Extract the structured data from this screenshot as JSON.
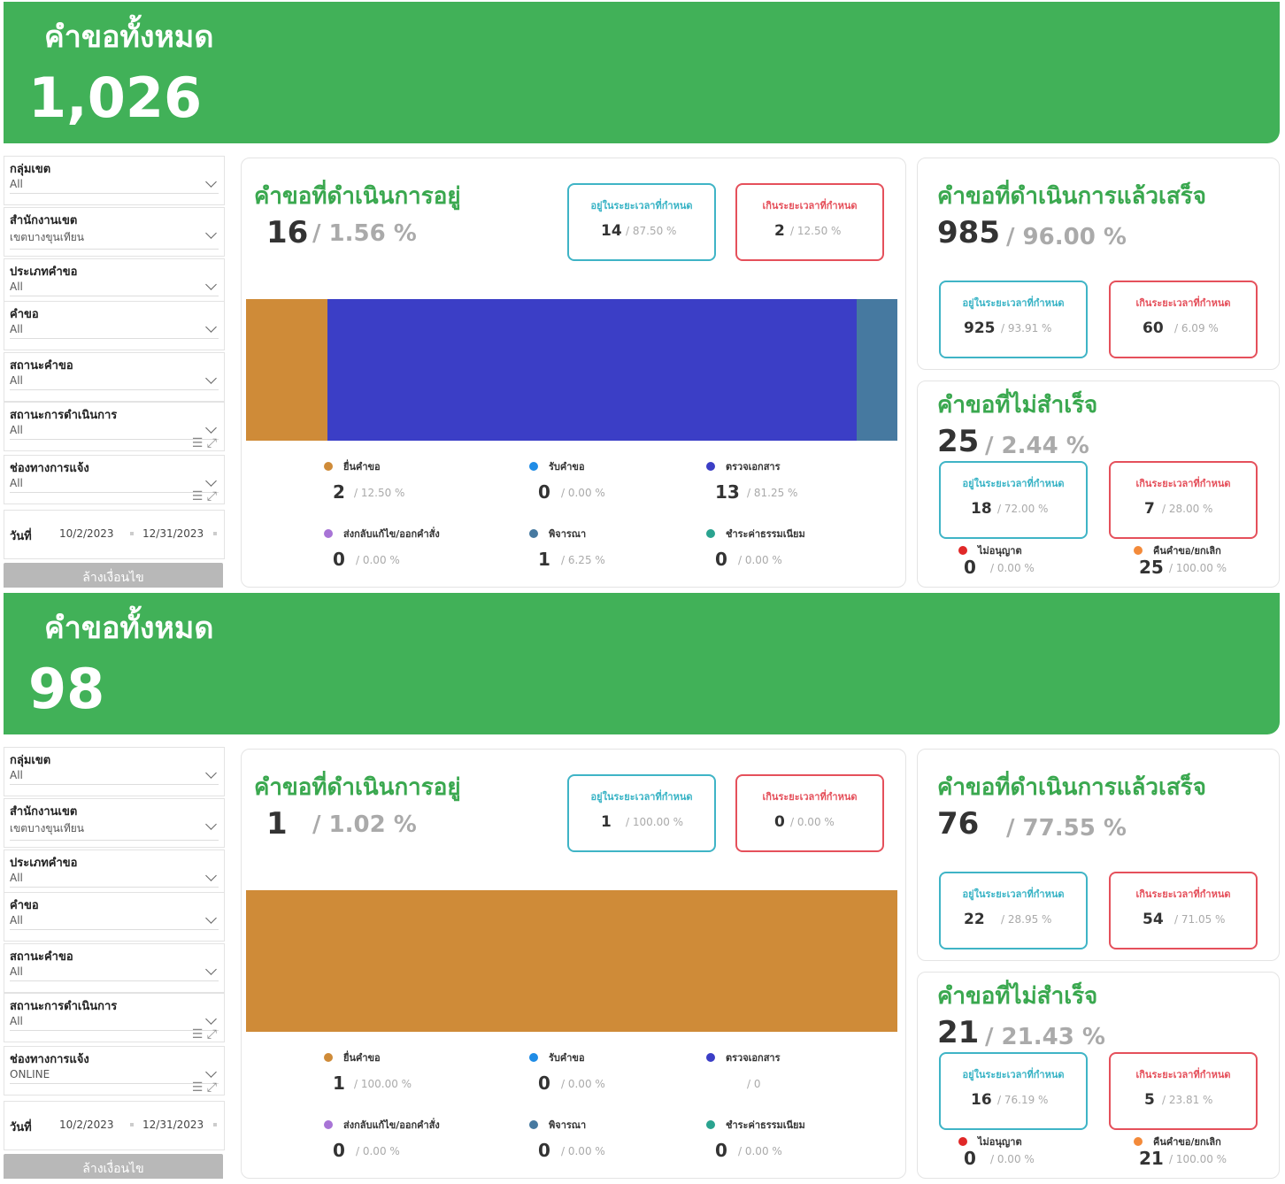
{
  "colors": {
    "green": "#41b158",
    "title_green": "#3aa84f",
    "in_time": "#3fb4c6",
    "over_time": "#e5505b",
    "submit": "#cf8b38",
    "receive": "#1f8ce6",
    "check_docs": "#3b3ec6",
    "return": "#a874d6",
    "consider": "#4679a0",
    "pay_fee": "#2aa38f",
    "not_approved": "#e02828",
    "cancel": "#f38a3a"
  },
  "common": {
    "banner_title": "คำขอทั้งหมด",
    "filters": {
      "zone_group": "กลุ่มเขต",
      "district_office": "สำนักงานเขต",
      "request_type": "ประเภทคำขอ",
      "request": "คำขอ",
      "request_status": "สถานะคำขอ",
      "operation_status": "สถานะการดำเนินการ",
      "channel": "ช่องทางการแจ้ง",
      "date": "วันที่",
      "clear": "ล้างเงื่อนไข"
    },
    "in_progress_title": "คำขอที่ดำเนินการอยู่",
    "completed_title": "คำขอที่ดำเนินการแล้วเสร็จ",
    "failed_title": "คำขอที่ไม่สำเร็จ",
    "in_time": "อยู่ในระยะเวลาที่กำหนด",
    "over_time": "เกินระยะเวลาที่กำหนด",
    "legend": {
      "submit": "ยื่นคำขอ",
      "receive": "รับคำขอ",
      "check_docs": "ตรวจเอกสาร",
      "return": "ส่งกลับแก้ไข/ออกคำสั่ง",
      "consider": "พิจารณา",
      "pay_fee": "ชำระค่าธรรมเนียม"
    },
    "not_approved": "ไม่อนุญาต",
    "cancel": "คืนคำขอ/ยกเลิก"
  },
  "panel_a": {
    "total": "1,026",
    "filters": {
      "zone_group": "All",
      "district_office": "เขตบางขุนเทียน",
      "request_type": "All",
      "request": "All",
      "request_status": "All",
      "operation_status": "All",
      "channel": "All",
      "date_from": "10/2/2023",
      "date_to": "12/31/2023"
    },
    "in_progress": {
      "count": "16",
      "pct": "/ 1.56 %",
      "in_count": "14",
      "in_pct": "/ 87.50 %",
      "over_count": "2",
      "over_pct": "/ 12.50 %"
    },
    "stages": {
      "submit": {
        "count": "2",
        "pct": "/ 12.50 %",
        "value": 2
      },
      "receive": {
        "count": "0",
        "pct": "/ 0.00 %",
        "value": 0
      },
      "check_docs": {
        "count": "13",
        "pct": "/ 81.25 %",
        "value": 13
      },
      "return": {
        "count": "0",
        "pct": "/ 0.00 %",
        "value": 0
      },
      "consider": {
        "count": "1",
        "pct": "/ 6.25 %",
        "value": 1
      },
      "pay_fee": {
        "count": "0",
        "pct": "/ 0.00 %",
        "value": 0
      }
    },
    "completed": {
      "count": "985",
      "pct": "/ 96.00 %",
      "in_count": "925",
      "in_pct": "/ 93.91 %",
      "over_count": "60",
      "over_pct": "/ 6.09 %"
    },
    "failed": {
      "count": "25",
      "pct": "/ 2.44 %",
      "in_count": "18",
      "in_pct": "/ 72.00 %",
      "over_count": "7",
      "over_pct": "/ 28.00 %",
      "not_approved_count": "0",
      "not_approved_pct": "/ 0.00 %",
      "cancel_count": "25",
      "cancel_pct": "/ 100.00 %"
    }
  },
  "panel_b": {
    "total": "98",
    "filters": {
      "zone_group": "All",
      "district_office": "เขตบางขุนเทียน",
      "request_type": "All",
      "request": "All",
      "request_status": "All",
      "operation_status": "All",
      "channel": "ONLINE",
      "date_from": "10/2/2023",
      "date_to": "12/31/2023"
    },
    "in_progress": {
      "count": "1",
      "pct": "/ 1.02 %",
      "in_count": "1",
      "in_pct": "/ 100.00 %",
      "over_count": "0",
      "over_pct": "/ 0.00 %"
    },
    "stages": {
      "submit": {
        "count": "1",
        "pct": "/ 100.00 %",
        "value": 1
      },
      "receive": {
        "count": "0",
        "pct": "/ 0.00 %",
        "value": 0
      },
      "check_docs": {
        "count": "",
        "pct": "/ 0",
        "value": 0
      },
      "return": {
        "count": "0",
        "pct": "/ 0.00 %",
        "value": 0
      },
      "consider": {
        "count": "0",
        "pct": "/ 0.00 %",
        "value": 0
      },
      "pay_fee": {
        "count": "0",
        "pct": "/ 0.00 %",
        "value": 0
      }
    },
    "completed": {
      "count": "76",
      "pct": "/ 77.55 %",
      "in_count": "22",
      "in_pct": "/ 28.95 %",
      "over_count": "54",
      "over_pct": "/ 71.05 %"
    },
    "failed": {
      "count": "21",
      "pct": "/ 21.43 %",
      "in_count": "16",
      "in_pct": "/ 76.19 %",
      "over_count": "5",
      "over_pct": "/ 23.81 %",
      "not_approved_count": "0",
      "not_approved_pct": "/ 0.00 %",
      "cancel_count": "21",
      "cancel_pct": "/ 100.00 %"
    }
  }
}
